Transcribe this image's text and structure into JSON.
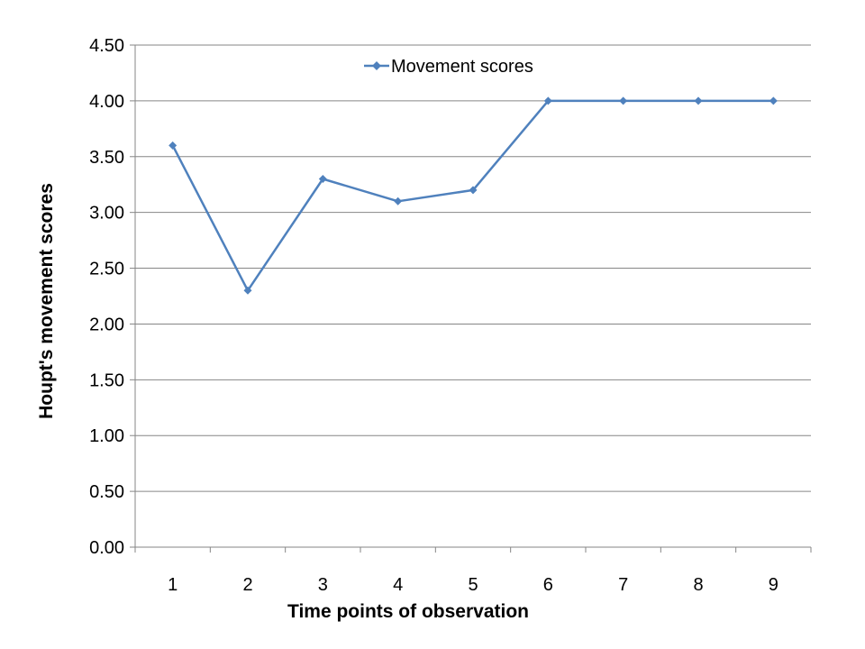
{
  "chart_data": {
    "type": "line",
    "title": "",
    "xlabel": "Time points of observation",
    "ylabel": "Houpt's movement scores",
    "categories": [
      "1",
      "2",
      "3",
      "4",
      "5",
      "6",
      "7",
      "8",
      "9"
    ],
    "ylim": [
      0,
      4.5
    ],
    "yticks": [
      "0.00",
      "0.50",
      "1.00",
      "1.50",
      "2.00",
      "2.50",
      "3.00",
      "3.50",
      "4.00",
      "4.50"
    ],
    "grid": true,
    "legend_position": "top-center",
    "series": [
      {
        "name": "Movement scores",
        "color": "#4F81BD",
        "marker": "diamond",
        "values": [
          3.6,
          2.3,
          3.3,
          3.1,
          3.2,
          4.0,
          4.0,
          4.0,
          4.0
        ]
      }
    ]
  }
}
